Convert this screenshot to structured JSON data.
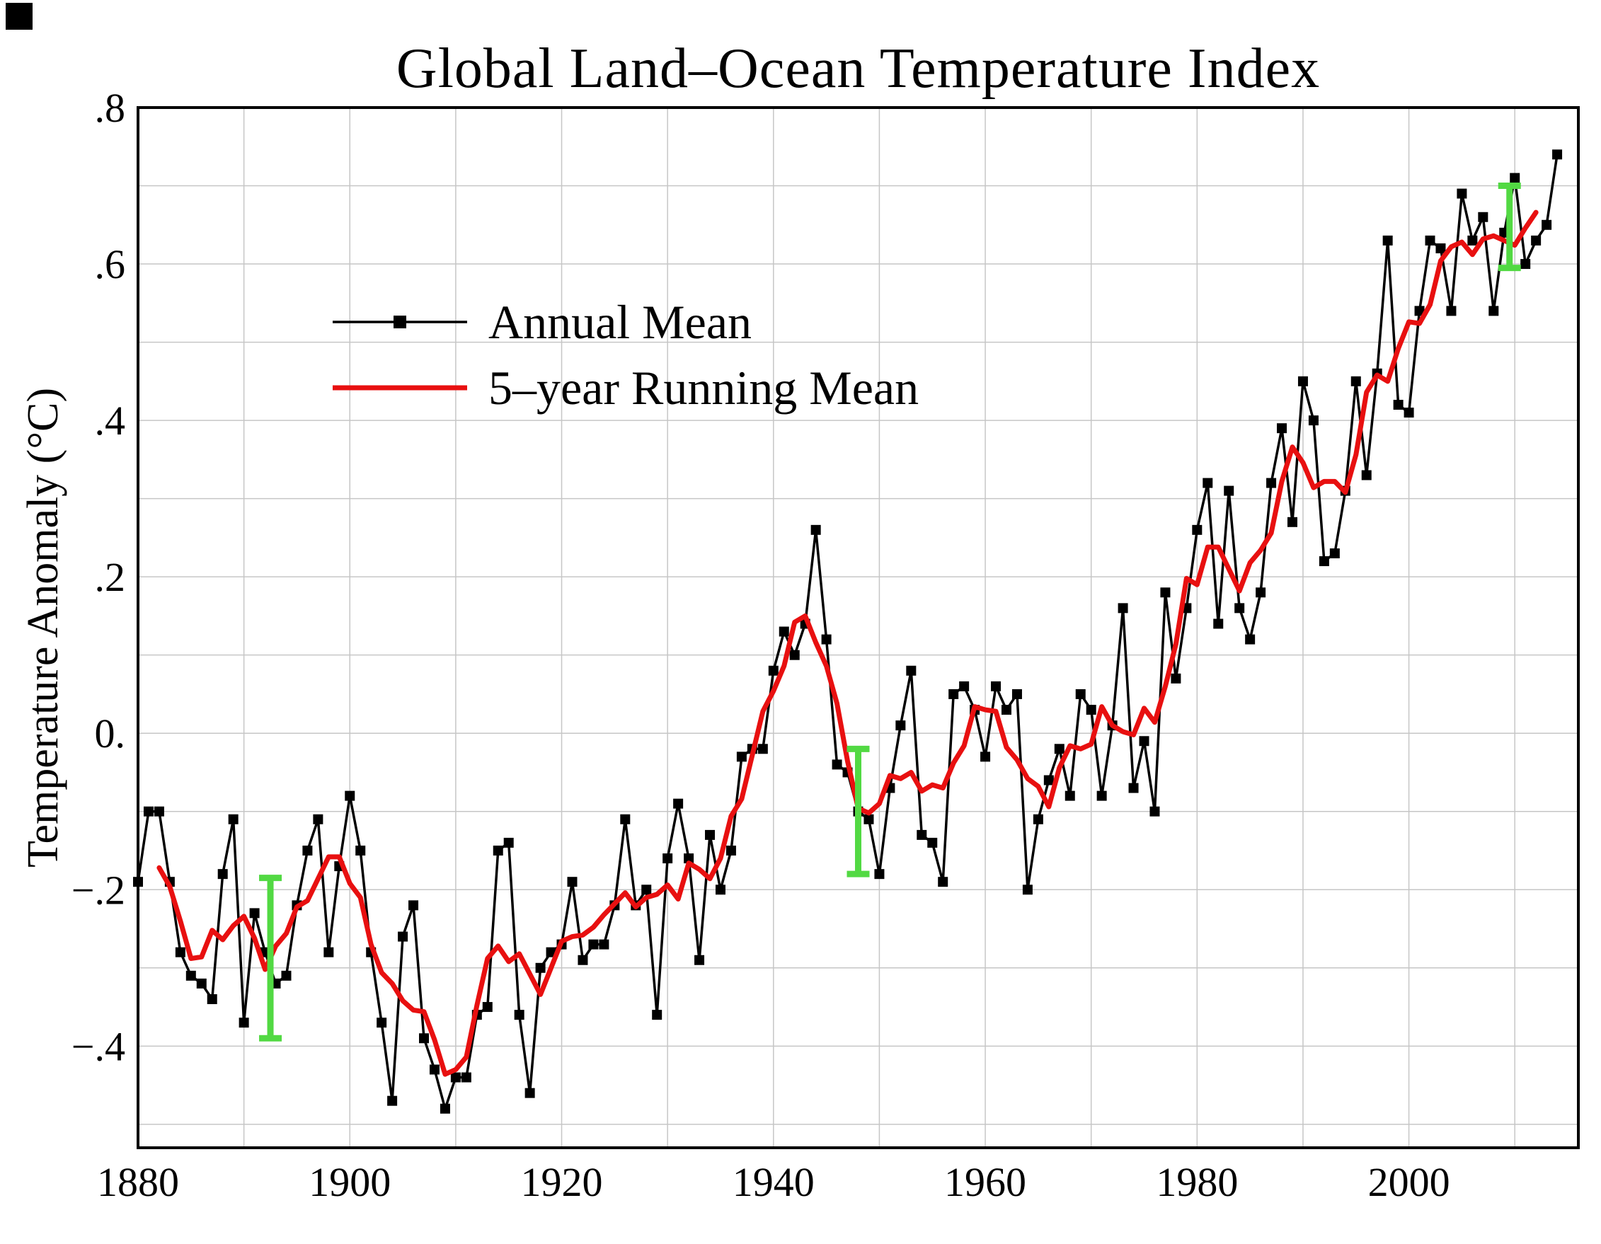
{
  "chart_data": {
    "type": "line",
    "title": "Global Land–Ocean Temperature Index",
    "ylabel": "Temperature Anomaly (°C)",
    "start_year": 1880,
    "end_year": 2014,
    "grid": true,
    "grid_color": "#c6c6c6",
    "series": [
      {
        "name": "Annual Mean",
        "color": "#000000",
        "marker": "square",
        "values": [
          -0.19,
          -0.1,
          -0.1,
          -0.19,
          -0.28,
          -0.31,
          -0.32,
          -0.34,
          -0.18,
          -0.11,
          -0.37,
          -0.23,
          -0.28,
          -0.32,
          -0.31,
          -0.22,
          -0.15,
          -0.11,
          -0.28,
          -0.17,
          -0.08,
          -0.15,
          -0.28,
          -0.37,
          -0.47,
          -0.26,
          -0.22,
          -0.39,
          -0.43,
          -0.48,
          -0.44,
          -0.44,
          -0.36,
          -0.35,
          -0.15,
          -0.14,
          -0.36,
          -0.46,
          -0.3,
          -0.28,
          -0.27,
          -0.19,
          -0.29,
          -0.27,
          -0.27,
          -0.22,
          -0.11,
          -0.22,
          -0.2,
          -0.36,
          -0.16,
          -0.09,
          -0.16,
          -0.29,
          -0.13,
          -0.2,
          -0.15,
          -0.03,
          -0.02,
          -0.02,
          0.08,
          0.13,
          0.1,
          0.14,
          0.26,
          0.12,
          -0.04,
          -0.05,
          -0.1,
          -0.11,
          -0.18,
          -0.07,
          0.01,
          0.08,
          -0.13,
          -0.14,
          -0.19,
          0.05,
          0.06,
          0.03,
          -0.03,
          0.06,
          0.03,
          0.05,
          -0.2,
          -0.11,
          -0.06,
          -0.02,
          -0.08,
          0.05,
          0.03,
          -0.08,
          0.01,
          0.16,
          -0.07,
          -0.01,
          -0.1,
          0.18,
          0.07,
          0.16,
          0.26,
          0.32,
          0.14,
          0.31,
          0.16,
          0.12,
          0.18,
          0.32,
          0.39,
          0.27,
          0.45,
          0.4,
          0.22,
          0.23,
          0.31,
          0.45,
          0.33,
          0.46,
          0.63,
          0.42,
          0.41,
          0.54,
          0.63,
          0.62,
          0.54,
          0.69,
          0.63,
          0.66,
          0.54,
          0.64,
          0.71,
          0.6,
          0.63,
          0.65,
          0.74
        ]
      },
      {
        "name": "5–year Running Mean",
        "color": "#e81010",
        "derived": "5-year centered running mean of Annual Mean"
      }
    ],
    "uncertainty_bars": {
      "color": "#52d943",
      "items": [
        {
          "year": 1892.5,
          "top": -0.185,
          "bottom": -0.39
        },
        {
          "year": 1948.0,
          "top": -0.02,
          "bottom": -0.18
        },
        {
          "year": 2009.5,
          "top": 0.7,
          "bottom": 0.595
        }
      ]
    },
    "axes": {
      "x": {
        "min": 1880,
        "max": 2016,
        "grid_step": 10,
        "ticks": [
          {
            "v": 1880,
            "label": "1880"
          },
          {
            "v": 1900,
            "label": "1900"
          },
          {
            "v": 1920,
            "label": "1920"
          },
          {
            "v": 1940,
            "label": "1940"
          },
          {
            "v": 1960,
            "label": "1960"
          },
          {
            "v": 1980,
            "label": "1980"
          },
          {
            "v": 2000,
            "label": "2000"
          }
        ]
      },
      "y": {
        "min": -0.53,
        "max": 0.8,
        "grid_step": 0.1,
        "ticks": [
          {
            "v": 0.8,
            "label": ".8"
          },
          {
            "v": 0.6,
            "label": ".6"
          },
          {
            "v": 0.4,
            "label": ".4"
          },
          {
            "v": 0.2,
            "label": ".2"
          },
          {
            "v": 0.0,
            "label": "0."
          },
          {
            "v": -0.2,
            "label": "−.2"
          },
          {
            "v": -0.4,
            "label": "−.4"
          }
        ]
      }
    },
    "legend": {
      "position": "upper-left",
      "entries": [
        "Annual Mean",
        "5–year Running Mean"
      ]
    }
  }
}
